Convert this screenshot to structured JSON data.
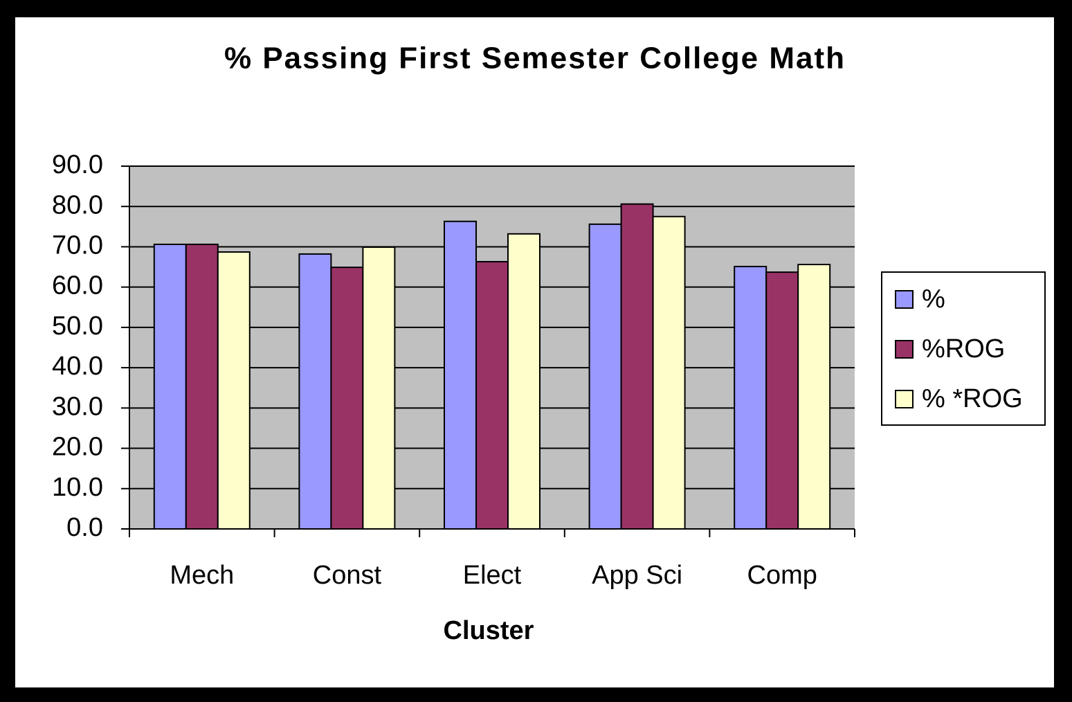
{
  "chart_data": {
    "type": "bar",
    "title": "% Passing First Semester College Math",
    "x_label": "Cluster",
    "categories": [
      "Mech",
      "Const",
      "Elect",
      "App Sci",
      "Comp"
    ],
    "series": [
      {
        "name": "%",
        "color": "#9999ff",
        "values": [
          70.6,
          68.2,
          76.3,
          75.6,
          65.1
        ]
      },
      {
        "name": "%ROG",
        "color": "#993366",
        "values": [
          70.6,
          64.9,
          66.3,
          80.6,
          63.7
        ]
      },
      {
        "name": "% *ROG",
        "color": "#ffffcc",
        "values": [
          68.7,
          69.9,
          73.2,
          77.5,
          65.6
        ]
      }
    ],
    "ylim": [
      0,
      90
    ],
    "yticks": [
      {
        "value": 0,
        "label": "0.0"
      },
      {
        "value": 10,
        "label": "10.0"
      },
      {
        "value": 20,
        "label": "20.0"
      },
      {
        "value": 30,
        "label": "30.0"
      },
      {
        "value": 40,
        "label": "40.0"
      },
      {
        "value": 50,
        "label": "50.0"
      },
      {
        "value": 60,
        "label": "60.0"
      },
      {
        "value": 70,
        "label": "70.0"
      },
      {
        "value": 80,
        "label": "80.0"
      },
      {
        "value": 90,
        "label": "90.0"
      }
    ],
    "grid": true,
    "plot_background": "#c0c0c0",
    "legend": "right"
  }
}
